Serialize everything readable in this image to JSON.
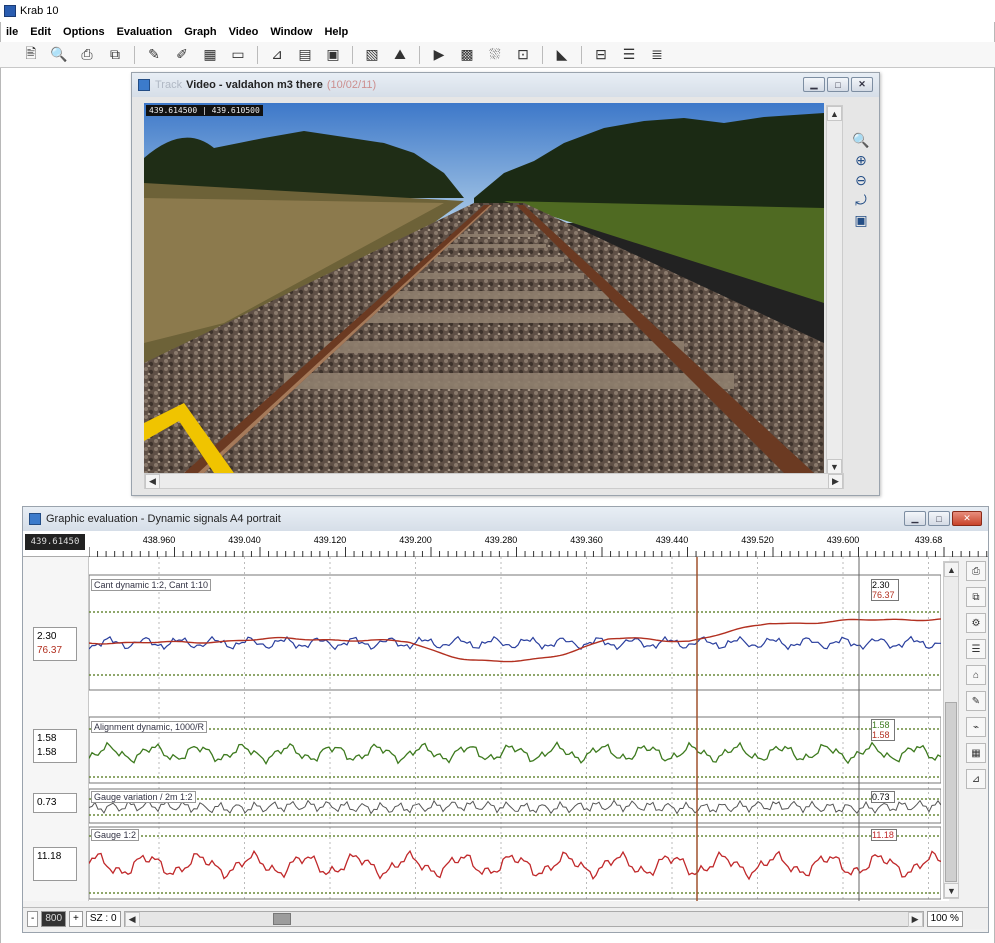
{
  "app": {
    "title": "Krab 10",
    "menu": [
      "ile",
      "Edit",
      "Options",
      "Evaluation",
      "Graph",
      "Video",
      "Window",
      "Help"
    ],
    "toolbar_icons": [
      "print-preview-icon",
      "zoom-icon",
      "print-icon",
      "layout-icon",
      "pen-icon",
      "draw-icon",
      "track-icon",
      "frame-icon",
      "measure-icon",
      "table-icon",
      "calculator-icon",
      "report-icon",
      "map-icon",
      "video-icon",
      "photo-icon",
      "image-icon",
      "snapshot-icon",
      "camera-icon",
      "split-icon",
      "stack-icon",
      "stack2-icon"
    ]
  },
  "video_window": {
    "title_prefix": "Track",
    "title_main": "Video - valdahon m3 there",
    "title_suffix": "(10/02/11)",
    "timestamp": "439.614500 | 439.610500",
    "side_tools": [
      "zoom-fit-icon",
      "zoom-in-icon",
      "zoom-out-icon",
      "rotate-icon",
      "export-icon"
    ]
  },
  "graph_window": {
    "title": "Graphic evaluation  -  Dynamic signals A4 portrait",
    "position_readout": "439.61450",
    "ruler_ticks": [
      "438.960",
      "439.040",
      "439.120",
      "439.200",
      "439.280",
      "439.360",
      "439.440",
      "439.520",
      "439.600",
      "439.68"
    ],
    "channels": [
      {
        "label": "Cant dynamic 1:2, Cant 1:10",
        "values": [
          "2.30",
          "76.37"
        ],
        "right_values": [
          "2.30",
          "76.37"
        ],
        "colors": [
          "#2a3f9e",
          "#b23020"
        ]
      },
      {
        "label": "Alignment dynamic, 1000/R",
        "values": [
          "1.58",
          "1.58"
        ],
        "right_values": [
          "1.58",
          "1.58"
        ],
        "colors": [
          "#3d7a1e"
        ]
      },
      {
        "label": "Gauge variation / 2m 1:2",
        "values": [
          "0.73"
        ],
        "right_values": [
          "0.73"
        ],
        "colors": [
          "#333333"
        ]
      },
      {
        "label": "Gauge 1:2",
        "values": [
          "11.18"
        ],
        "right_values": [
          "11.18"
        ],
        "colors": [
          "#c0282a"
        ]
      }
    ],
    "bottom": {
      "scale_value": "800",
      "sz_label": "SZ : 0",
      "zoom": "100 %"
    },
    "right_tools": [
      "print-icon",
      "copy-icon",
      "settings-icon",
      "list-icon",
      "home-icon",
      "comment-icon",
      "chart-icon",
      "grid-icon",
      "measure-icon"
    ]
  }
}
